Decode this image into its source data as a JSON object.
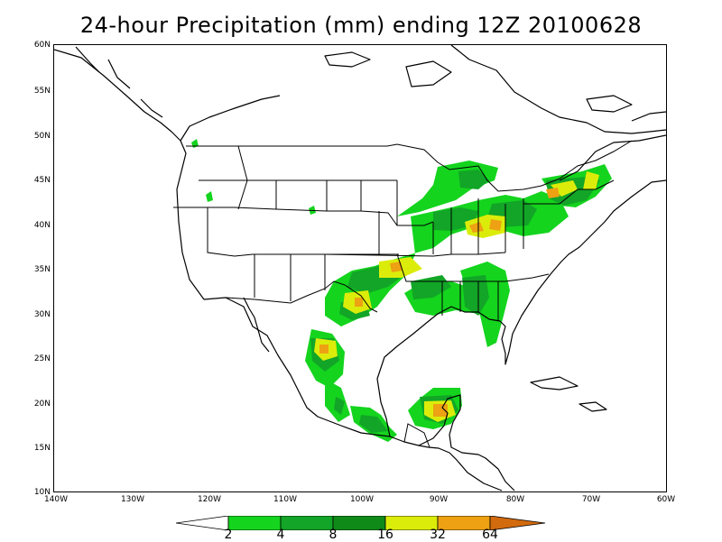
{
  "title": "24-hour Precipitation (mm) ending 12Z 20100628",
  "map": {
    "lat_ticks": [
      "60N",
      "55N",
      "50N",
      "45N",
      "40N",
      "35N",
      "30N",
      "25N",
      "20N",
      "15N",
      "10N"
    ],
    "lon_ticks": [
      "140W",
      "130W",
      "120W",
      "110W",
      "100W",
      "90W",
      "80W",
      "70W",
      "60W"
    ]
  },
  "colorbar": {
    "levels": [
      "2",
      "4",
      "8",
      "16",
      "32",
      "64"
    ],
    "colors": [
      "#ffffff",
      "#14d41e",
      "#12a527",
      "#0f8a18",
      "#dcec0a",
      "#eda113",
      "#d26a0e"
    ]
  }
}
